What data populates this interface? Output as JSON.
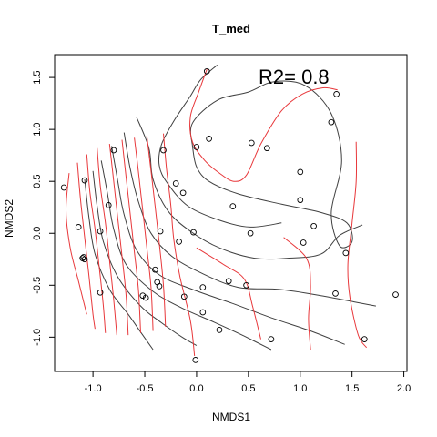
{
  "chart_data": {
    "type": "scatter",
    "title": "T_med",
    "xlabel": "NMDS1",
    "ylabel": "NMDS2",
    "annotation": "R2= 0.8",
    "xlim": [
      -1.37,
      2.03
    ],
    "ylim": [
      -1.33,
      1.72
    ],
    "x_ticks": [
      -1.0,
      -0.5,
      0.0,
      0.5,
      1.0,
      1.5,
      2.0
    ],
    "x_tick_labels": [
      "-1.0",
      "-0.5",
      "0.0",
      "0.5",
      "1.0",
      "1.5",
      "2.0"
    ],
    "y_ticks": [
      -1.0,
      -0.5,
      0.0,
      0.5,
      1.0,
      1.5
    ],
    "y_tick_labels": [
      "-1.0",
      "-0.5",
      "0.0",
      "0.5",
      "1.0",
      "1.5"
    ],
    "point_style": "open-circle",
    "points": [
      [
        0.1,
        1.56
      ],
      [
        1.35,
        1.34
      ],
      [
        1.3,
        1.07
      ],
      [
        0.12,
        0.91
      ],
      [
        0.0,
        0.83
      ],
      [
        0.53,
        0.87
      ],
      [
        0.68,
        0.82
      ],
      [
        -0.8,
        0.8
      ],
      [
        -0.32,
        0.8
      ],
      [
        1.0,
        0.59
      ],
      [
        -0.2,
        0.48
      ],
      [
        -0.13,
        0.39
      ],
      [
        1.0,
        0.32
      ],
      [
        0.35,
        0.26
      ],
      [
        -1.28,
        0.44
      ],
      [
        -1.08,
        0.51
      ],
      [
        -0.85,
        0.27
      ],
      [
        -1.14,
        0.06
      ],
      [
        -0.93,
        0.02
      ],
      [
        -0.35,
        0.02
      ],
      [
        -0.03,
        0.01
      ],
      [
        1.13,
        0.07
      ],
      [
        0.52,
        0.0
      ],
      [
        1.03,
        -0.09
      ],
      [
        -0.17,
        -0.08
      ],
      [
        1.44,
        -0.19
      ],
      [
        -1.09,
        -0.23
      ],
      [
        -1.1,
        -0.24
      ],
      [
        -1.08,
        -0.25
      ],
      [
        -0.4,
        -0.35
      ],
      [
        -0.38,
        -0.47
      ],
      [
        -0.36,
        -0.51
      ],
      [
        -0.12,
        -0.61
      ],
      [
        0.31,
        -0.46
      ],
      [
        0.48,
        -0.5
      ],
      [
        0.06,
        -0.52
      ],
      [
        1.34,
        -0.58
      ],
      [
        -0.52,
        -0.6
      ],
      [
        -0.49,
        -0.62
      ],
      [
        -0.93,
        -0.57
      ],
      [
        1.92,
        -0.59
      ],
      [
        0.06,
        -0.76
      ],
      [
        0.22,
        -0.93
      ],
      [
        0.72,
        -1.02
      ],
      [
        1.62,
        -1.02
      ],
      [
        -0.01,
        -1.22
      ]
    ],
    "contour_sets": [
      {
        "color": "#404040",
        "lines": [
          [
            [
              0.2,
              1.62
            ],
            [
              0.04,
              1.48
            ],
            [
              -0.06,
              1.32
            ],
            [
              -0.22,
              1.08
            ],
            [
              -0.34,
              0.85
            ],
            [
              -0.36,
              0.65
            ],
            [
              -0.28,
              0.48
            ],
            [
              -0.08,
              0.26
            ],
            [
              0.24,
              0.12
            ],
            [
              0.52,
              0.06
            ],
            [
              0.82,
              0.1
            ]
          ],
          [
            [
              -0.58,
              1.12
            ],
            [
              -0.46,
              0.82
            ],
            [
              -0.42,
              0.52
            ],
            [
              -0.28,
              0.22
            ],
            [
              -0.06,
              0.02
            ],
            [
              0.22,
              -0.14
            ],
            [
              0.56,
              -0.24
            ],
            [
              0.88,
              -0.24
            ],
            [
              1.2,
              -0.2
            ],
            [
              1.38,
              -0.02
            ],
            [
              1.6,
              0.08
            ]
          ],
          [
            [
              -0.7,
              0.97
            ],
            [
              -0.64,
              0.62
            ],
            [
              -0.56,
              0.3
            ],
            [
              -0.44,
              0.0
            ],
            [
              -0.24,
              -0.22
            ],
            [
              0.04,
              -0.38
            ],
            [
              0.4,
              -0.52
            ],
            [
              0.8,
              -0.54
            ],
            [
              1.2,
              -0.6
            ],
            [
              1.52,
              -0.66
            ],
            [
              1.73,
              -0.7
            ]
          ],
          [
            [
              -0.82,
              0.84
            ],
            [
              -0.76,
              0.5
            ],
            [
              -0.7,
              0.18
            ],
            [
              -0.58,
              -0.16
            ],
            [
              -0.36,
              -0.4
            ],
            [
              -0.04,
              -0.54
            ],
            [
              0.36,
              -0.68
            ],
            [
              0.74,
              -0.82
            ],
            [
              1.1,
              -0.94
            ],
            [
              1.43,
              -1.07
            ]
          ],
          [
            [
              -0.92,
              0.7
            ],
            [
              -0.86,
              0.38
            ],
            [
              -0.8,
              0.04
            ],
            [
              -0.68,
              -0.3
            ],
            [
              -0.42,
              -0.56
            ],
            [
              -0.14,
              -0.72
            ],
            [
              0.18,
              -0.86
            ],
            [
              0.46,
              -0.99
            ],
            [
              0.72,
              -1.12
            ]
          ],
          [
            [
              -1.0,
              0.6
            ],
            [
              -0.96,
              0.26
            ],
            [
              -0.9,
              -0.08
            ],
            [
              -0.76,
              -0.42
            ],
            [
              -0.54,
              -0.7
            ],
            [
              -0.34,
              -0.86
            ],
            [
              -0.14,
              -1.0
            ],
            [
              0.0,
              -1.08
            ]
          ],
          [
            [
              -1.08,
              0.52
            ],
            [
              -1.04,
              0.16
            ],
            [
              -0.98,
              -0.2
            ],
            [
              -0.84,
              -0.54
            ],
            [
              -0.66,
              -0.78
            ],
            [
              -0.52,
              -0.98
            ],
            [
              -0.42,
              -1.12
            ]
          ],
          [
            [
              -0.04,
              0.84
            ],
            [
              0.0,
              0.64
            ],
            [
              0.12,
              0.5
            ],
            [
              0.4,
              0.38
            ],
            [
              0.82,
              0.28
            ],
            [
              1.2,
              0.2
            ],
            [
              1.45,
              0.1
            ],
            [
              1.5,
              -0.08
            ],
            [
              1.38,
              -0.12
            ],
            [
              1.3,
              0.2
            ],
            [
              1.4,
              0.7
            ],
            [
              1.3,
              1.15
            ],
            [
              1.05,
              1.42
            ],
            [
              0.75,
              1.46
            ],
            [
              0.5,
              1.36
            ],
            [
              0.2,
              1.28
            ],
            [
              -0.04,
              1.06
            ],
            [
              -0.04,
              0.84
            ]
          ]
        ]
      },
      {
        "color": "#e8383b",
        "lines": [
          [
            [
              -1.23,
              0.58
            ],
            [
              -1.26,
              0.22
            ],
            [
              -1.22,
              -0.14
            ],
            [
              -1.14,
              -0.46
            ],
            [
              -1.06,
              -0.78
            ]
          ],
          [
            [
              -1.15,
              0.68
            ],
            [
              -1.12,
              0.32
            ],
            [
              -1.08,
              -0.04
            ],
            [
              -1.04,
              -0.4
            ],
            [
              -1.0,
              -0.78
            ],
            [
              -0.98,
              -0.92
            ]
          ],
          [
            [
              -1.06,
              0.76
            ],
            [
              -1.03,
              0.4
            ],
            [
              -0.98,
              0.04
            ],
            [
              -0.94,
              -0.32
            ],
            [
              -0.9,
              -0.7
            ],
            [
              -0.88,
              -0.96
            ]
          ],
          [
            [
              -0.96,
              0.82
            ],
            [
              -0.93,
              0.46
            ],
            [
              -0.88,
              0.1
            ],
            [
              -0.84,
              -0.26
            ],
            [
              -0.8,
              -0.64
            ],
            [
              -0.77,
              -0.98
            ]
          ],
          [
            [
              -0.84,
              0.86
            ],
            [
              -0.8,
              0.5
            ],
            [
              -0.76,
              0.14
            ],
            [
              -0.72,
              -0.22
            ],
            [
              -0.68,
              -0.6
            ],
            [
              -0.66,
              -0.98
            ]
          ],
          [
            [
              -0.72,
              0.9
            ],
            [
              -0.68,
              0.54
            ],
            [
              -0.64,
              0.18
            ],
            [
              -0.6,
              -0.18
            ],
            [
              -0.56,
              -0.56
            ],
            [
              -0.54,
              -0.96
            ]
          ],
          [
            [
              -0.6,
              0.92
            ],
            [
              -0.56,
              0.58
            ],
            [
              -0.52,
              0.22
            ],
            [
              -0.48,
              -0.14
            ],
            [
              -0.44,
              -0.52
            ],
            [
              -0.42,
              -0.94
            ]
          ],
          [
            [
              -0.48,
              0.94
            ],
            [
              -0.44,
              0.6
            ],
            [
              -0.4,
              0.26
            ],
            [
              -0.36,
              -0.1
            ],
            [
              -0.32,
              -0.5
            ],
            [
              -0.3,
              -0.9
            ]
          ],
          [
            [
              -0.32,
              0.96
            ],
            [
              -0.29,
              0.62
            ],
            [
              -0.25,
              0.28
            ],
            [
              -0.22,
              -0.06
            ],
            [
              -0.16,
              -0.42
            ],
            [
              -0.06,
              -0.84
            ],
            [
              -0.02,
              -1.18
            ]
          ],
          [
            [
              0.1,
              1.58
            ],
            [
              0.02,
              1.36
            ],
            [
              -0.06,
              1.12
            ],
            [
              -0.04,
              0.88
            ],
            [
              0.08,
              0.7
            ],
            [
              0.22,
              0.58
            ],
            [
              0.36,
              0.5
            ],
            [
              0.48,
              0.56
            ],
            [
              0.62,
              0.86
            ],
            [
              0.82,
              1.18
            ],
            [
              1.02,
              1.34
            ],
            [
              1.22,
              1.4
            ],
            [
              1.36,
              1.38
            ]
          ],
          [
            [
              0.0,
              -0.14
            ],
            [
              0.26,
              -0.3
            ],
            [
              0.46,
              -0.44
            ],
            [
              0.54,
              -0.7
            ],
            [
              0.62,
              -1.02
            ]
          ],
          [
            [
              0.84,
              -0.04
            ],
            [
              1.06,
              -0.24
            ],
            [
              1.1,
              -0.5
            ],
            [
              1.08,
              -0.82
            ],
            [
              1.1,
              -1.12
            ]
          ],
          [
            [
              1.54,
              0.88
            ],
            [
              1.54,
              0.5
            ],
            [
              1.5,
              0.1
            ],
            [
              1.46,
              -0.3
            ],
            [
              1.48,
              -0.62
            ],
            [
              1.56,
              -0.98
            ],
            [
              1.64,
              -1.1
            ]
          ]
        ]
      }
    ]
  }
}
